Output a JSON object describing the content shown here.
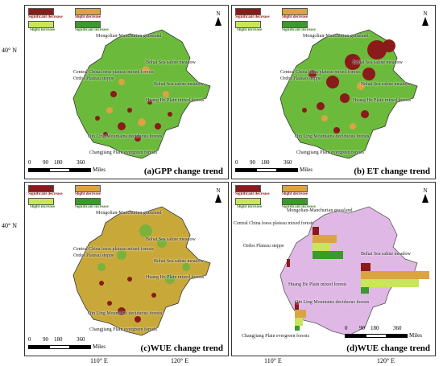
{
  "lat_label": "40° N",
  "lon_labels": [
    "110° E",
    "120° E"
  ],
  "legend": {
    "sig_dec": "Significant decrease",
    "slight_dec": "Slight decrease",
    "slight_inc": "Slight increase",
    "sig_inc": "Significant increase"
  },
  "colors": {
    "sig_dec": "#8b1a1a",
    "slight_dec": "#d9a441",
    "slight_inc": "#c8e65a",
    "sig_inc": "#3a9a2a",
    "region_fill": "#e0b8e6"
  },
  "north_label": "N",
  "scale": {
    "ticks": [
      "0",
      "90",
      "180",
      "360"
    ],
    "unit": "Miles"
  },
  "regions": {
    "mongolian": "Mongolian-Manchurian grassland",
    "bohai": "Bohai Sea saline meadow",
    "loess": "Central China loess plateau mixed forests",
    "ordos": "Ordos Plateau steppe",
    "huanghe": "Huang He Plain mixed forests",
    "qinling": "Qin Ling Mountains deciduous forests",
    "changjiang": "Changjiang Plain evergreen forests"
  },
  "panels": {
    "a_title": "(a)GPP change trend",
    "b_title": "(b) ET change trend",
    "c_title": "(c)WUE change trend",
    "d_title": "(d)WUE change trend"
  }
}
